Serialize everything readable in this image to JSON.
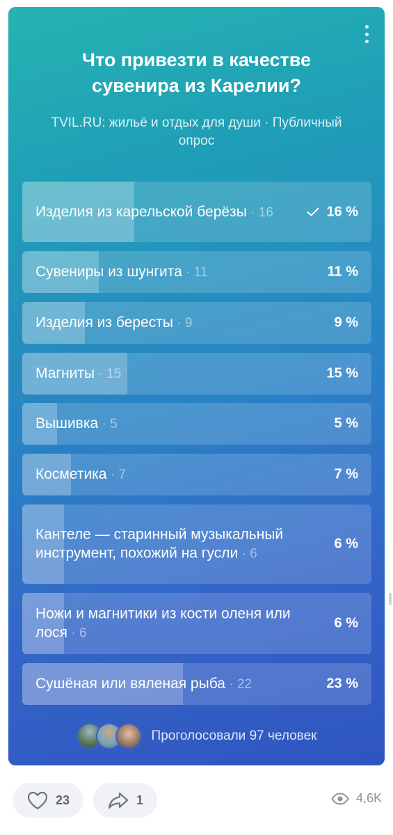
{
  "poll": {
    "title": "Что привезти в качестве сувенира из Карелии?",
    "subtitle": "TVIL.RU: жильё и отдых для души · Публичный опрос",
    "options": [
      {
        "label": "Изделия из карельской берёзы",
        "count": "16",
        "percent": "16 %",
        "fraction": 0.16,
        "checked": true
      },
      {
        "label": "Сувениры из шунгита",
        "count": "11",
        "percent": "11 %",
        "fraction": 0.11
      },
      {
        "label": "Изделия из бересты",
        "count": "9",
        "percent": "9 %",
        "fraction": 0.09
      },
      {
        "label": "Магниты",
        "count": "15",
        "percent": "15 %",
        "fraction": 0.15
      },
      {
        "label": "Вышивка",
        "count": "5",
        "percent": "5 %",
        "fraction": 0.05
      },
      {
        "label": "Косметика",
        "count": "7",
        "percent": "7 %",
        "fraction": 0.07
      },
      {
        "label": "Кантеле — старинный музыкальный инструмент, похожий на гусли",
        "count": "6",
        "percent": "6 %",
        "fraction": 0.06
      },
      {
        "label": "Ножи и магнитики из кости оленя или лося",
        "count": "6",
        "percent": "6 %",
        "fraction": 0.06
      },
      {
        "label": "Сушёная или вяленая рыба",
        "count": "22",
        "percent": "23 %",
        "fraction": 0.23
      }
    ],
    "voters_text": "Проголосовали 97 человек"
  },
  "footer": {
    "likes": "23",
    "shares": "1",
    "views": "4,6K"
  },
  "icons": {
    "menu": "more-vertical-icon",
    "check": "check-icon",
    "like": "heart-icon",
    "share": "share-arrow-icon",
    "views": "eye-icon"
  }
}
